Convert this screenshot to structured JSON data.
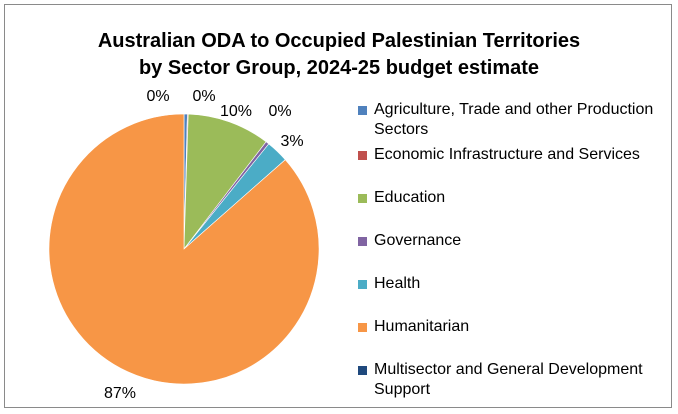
{
  "chart_data": {
    "type": "pie",
    "title_lines": [
      "Australian ODA to Occupied Palestinian Territories",
      "by Sector Group, 2024-25 budget estimate"
    ],
    "slices": [
      {
        "name": "Agriculture, Trade and other Production Sectors",
        "value": 0.4,
        "label": "0%",
        "color": "#4f81bd"
      },
      {
        "name": "Economic Infrastructure and Services",
        "value": 0.1,
        "label": "0%",
        "color": "#c0504d"
      },
      {
        "name": "Education",
        "value": 9.9,
        "label": "10%",
        "color": "#9bbb59"
      },
      {
        "name": "Governance",
        "value": 0.4,
        "label": "0%",
        "color": "#8064a2"
      },
      {
        "name": "Health",
        "value": 2.7,
        "label": "3%",
        "color": "#4bacc6"
      },
      {
        "name": "Humanitarian",
        "value": 86.5,
        "label": "87%",
        "color": "#f79646"
      },
      {
        "name": "Multisector and General Development Support",
        "value": 0.0,
        "label": "",
        "color": "#1f497d"
      }
    ],
    "legend_position": "right"
  }
}
